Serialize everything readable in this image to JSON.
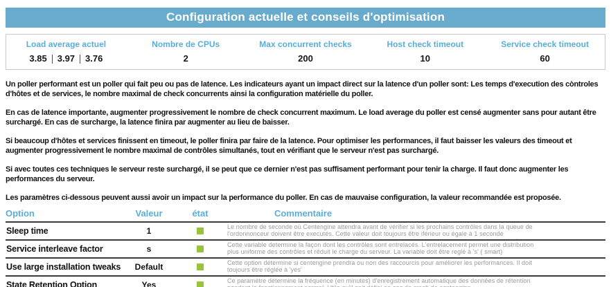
{
  "title": "Configuration actuelle et conseils d'optimisation",
  "colors": {
    "title_bar_bg": "#69abcc",
    "heading_text_blue": "#58aed8",
    "status_ok_green": "#9ac33d"
  },
  "summary": {
    "load_label": "Load average actuel",
    "load_values": [
      "3.85",
      "3.97",
      "3.76"
    ],
    "cpus_label": "Nombre de CPUs",
    "cpus_value": "2",
    "max_checks_label": "Max concurrent checks",
    "max_checks_value": "200",
    "host_timeout_label": "Host check timeout",
    "host_timeout_value": "10",
    "service_timeout_label": "Service check timeout",
    "service_timeout_value": "60"
  },
  "paragraphs": [
    "Un poller performant est un poller qui fait peu ou pas de latence. Les indicateurs ayant un impact direct sur la latence d'un poller sont: Les temps d'execution des còntroles d'hôtes et de services, le nombre maximal de check concurrents ainsi la configuration matérielle du poller.",
    "En cas de latence importante, augmenter progressivement le nombre de check concurrent maximum. Le load average du poller est censé augmenter sans pour autant être surchargé. En cas de surcharge, la latence finira par augmenter au lieu de baisser.",
    "Si beaucoup d'hôtes et services finissent en timeout, le poller finira par faire de la latence. Pour optimiser les performances, il faut baisser les valeurs des timeout et augmenter progressivement le nombre maximal de contrôles simultanés, tout en vérifiant que le serveur n'est pas surchargé.",
    "Si avec toutes ces techniques le serveur reste surchargé, il se peut que ce dernier n'est pas suffisament performant pour tenir la charge. Il faut donc augmenter les performances du serveur.",
    "Les paramètres ci-dessous peuvent aussi avoir un impact sur la performance du poller. En cas de mauvaise configuration, la valeur recommandée est proposée."
  ],
  "options": {
    "headers": {
      "option": "Option",
      "value": "Valeur",
      "state": "état",
      "comment": "Commentaire"
    },
    "rows": [
      {
        "name": "Sleep time",
        "value": "1",
        "state": "ok",
        "comment_line1": "Le nombre de seconde où Centengine attendra avant de vérifier si les prochains contrôles dans la queue de",
        "comment_line2": "l'ordonnonceur doivent être executés. Cette valeur doit toujours être iférieur ou égale à 1 seconde"
      },
      {
        "name": "Service interleave factor",
        "value": "s",
        "state": "ok",
        "comment_line1": "Cette variable determine la façon dont les contrôles sont entrelacés. L'entrelacement permet une distribution",
        "comment_line2": "plus uniforme des contrôles et réduit le charge du serveur. La variable doit être reglé à 's' ( smart)"
      },
      {
        "name": "Use large installation tweaks",
        "value": "Default",
        "state": "ok",
        "comment_line1": "Cette option détermine si centengine prendra ou non des raccourcis pour améliorer les performances. Il doit",
        "comment_line2": "toujours être réglée à 'yes'"
      },
      {
        "name": "State Retention Option",
        "value": "Yes",
        "state": "ok",
        "comment_line1": "Ce paramètre détermine la fréquence (en minutes) d'enregistrement automatique des données de rétention",
        "comment_line2": "pendant le fonctionnement normal. Utile qu'il soit défini en cas de crash de centengine."
      }
    ]
  }
}
